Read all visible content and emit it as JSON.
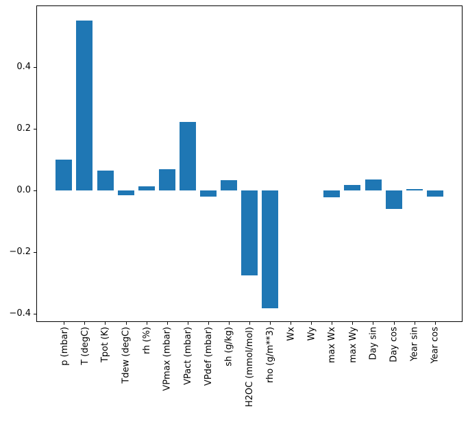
{
  "figure": {
    "background": "#ffffff"
  },
  "colors": {
    "bar": "#1f77b4",
    "axis": "#000000",
    "tick_label": "#000000"
  },
  "chart_data": {
    "type": "bar",
    "title": "",
    "xlabel": "",
    "ylabel": "",
    "categories": [
      "p (mbar)",
      "T (degC)",
      "Tpot (K)",
      "Tdew (degC)",
      "rh (%)",
      "VPmax (mbar)",
      "VPact (mbar)",
      "VPdef (mbar)",
      "sh (g/kg)",
      "H2OC (mmol/mol)",
      "rho (g/m**3)",
      "Wx",
      "Wy",
      "max Wx",
      "max Wy",
      "Day sin",
      "Day cos",
      "Year sin",
      "Year cos"
    ],
    "values": [
      0.099,
      0.55,
      0.064,
      -0.016,
      0.013,
      0.069,
      0.221,
      -0.02,
      0.033,
      -0.277,
      -0.383,
      0.0,
      0.0,
      -0.022,
      0.017,
      0.034,
      -0.061,
      0.003,
      -0.02
    ],
    "ylim": [
      -0.427,
      0.599
    ],
    "yticks": [
      {
        "value": 0.4,
        "label": "0.4"
      },
      {
        "value": 0.2,
        "label": "0.2"
      },
      {
        "value": 0.0,
        "label": "0.0"
      },
      {
        "value": -0.2,
        "label": "−0.2"
      },
      {
        "value": -0.4,
        "label": "−0.4"
      }
    ],
    "bar_color": "#1f77b4",
    "grid": false,
    "legend_position": "none",
    "x_tick_label_rotation_deg": 90
  }
}
